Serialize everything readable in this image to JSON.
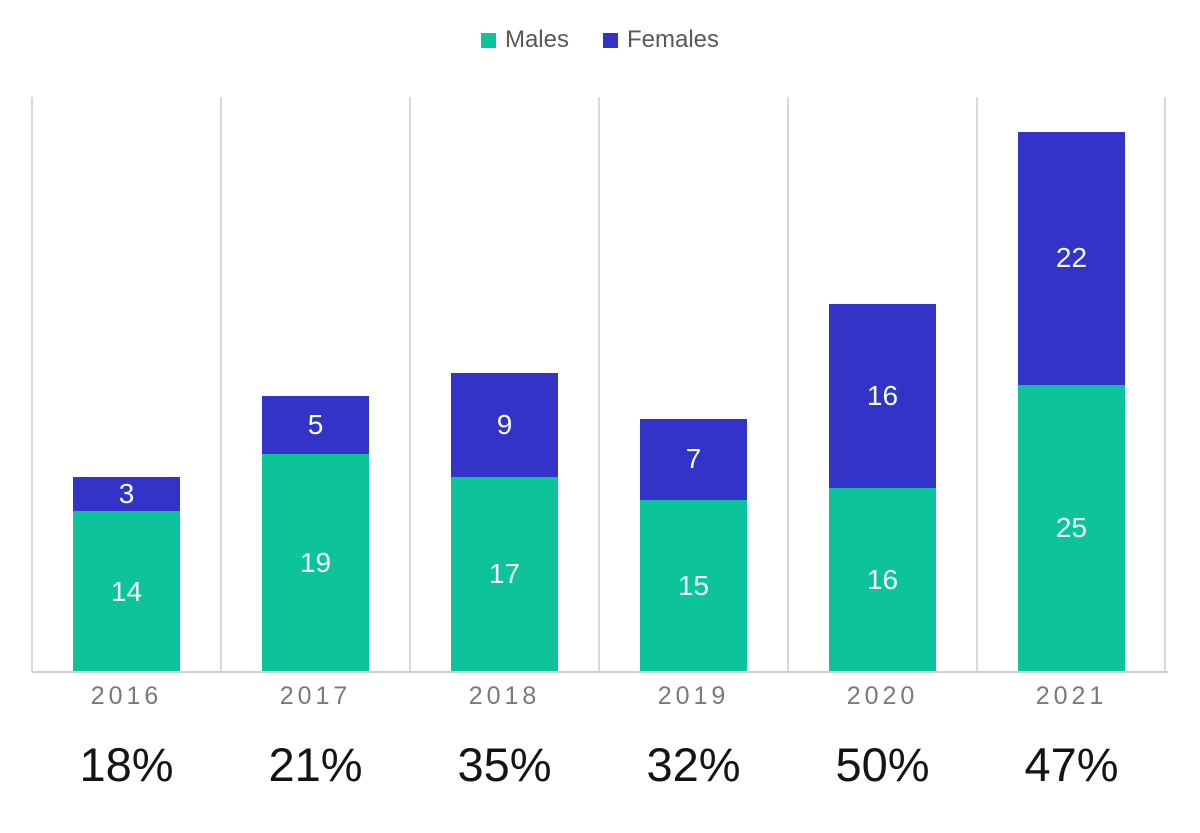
{
  "chart_data": {
    "type": "bar",
    "subtype": "stacked-column",
    "categories": [
      "2016",
      "2017",
      "2018",
      "2019",
      "2020",
      "2021"
    ],
    "series": [
      {
        "name": "Males",
        "color": "#0dc49a",
        "values": [
          14,
          19,
          17,
          15,
          16,
          25
        ]
      },
      {
        "name": "Females",
        "color": "#3433c8",
        "values": [
          3,
          5,
          9,
          7,
          16,
          22
        ]
      }
    ],
    "category_percent_labels": [
      "18%",
      "21%",
      "35%",
      "32%",
      "50%",
      "47%"
    ],
    "title": "",
    "xlabel": "",
    "ylabel": "",
    "ylim": [
      0,
      50
    ],
    "grid": "vertical-category-separators-only",
    "legend_position": "top-center",
    "bar_value_label_color": "#ffffff",
    "gridline_color": "#d9d9d9",
    "axis_line_color": "#d0d0d0",
    "category_label_color": "#7a7a7a",
    "percent_label_color": "#141414",
    "legend_text_color": "#595959"
  }
}
